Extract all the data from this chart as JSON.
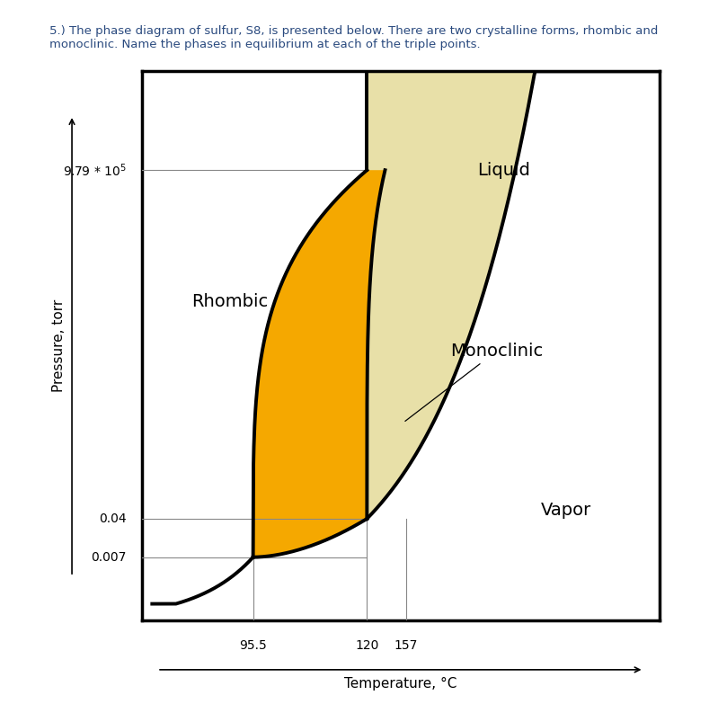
{
  "title_text": "5.) The phase diagram of sulfur, S8, is presented below. There are two crystalline forms, rhombic and\nmonoclinic. Name the phases in equilibrium at each of the triple points.",
  "xlabel": "Temperature, °C",
  "ylabel": "Pressure, torr",
  "bg_color": "#ffffff",
  "liquid_color": "#e8e0a8",
  "orange_color": "#f5a800",
  "line_color": "#000000",
  "text_color": "#2a4a7f",
  "label_color": "#000000",
  "gray_color": "#888888",
  "T1": 0.215,
  "T2": 0.435,
  "T3": 0.51,
  "P_tp1": 0.115,
  "P_tp2": 0.185,
  "P_tp3": 0.82,
  "figsize": [
    7.89,
    7.93
  ],
  "dpi": 100
}
